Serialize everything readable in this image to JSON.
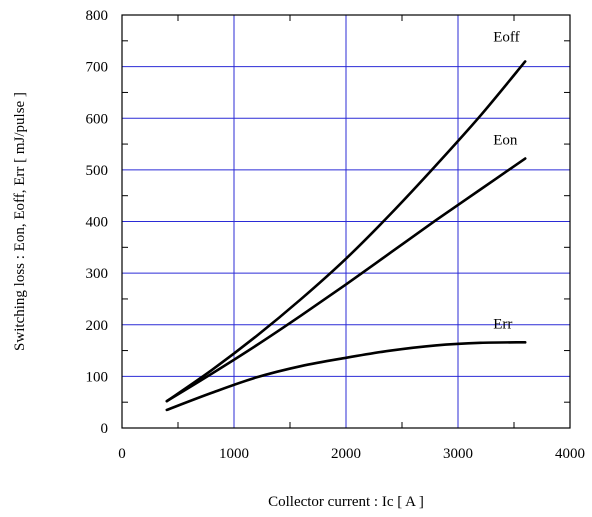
{
  "chart_data": {
    "type": "line",
    "xlabel": "Collector current : Ic [ A ]",
    "ylabel": "Switching loss : Eon, Eoff, Err [ mJ/pulse ]",
    "xlim": [
      0,
      4000
    ],
    "ylim": [
      0,
      800
    ],
    "x_ticks": [
      "0",
      "1000",
      "2000",
      "3000",
      "4000"
    ],
    "y_ticks": [
      "0",
      "100",
      "200",
      "300",
      "400",
      "500",
      "600",
      "700",
      "800"
    ],
    "grid": true,
    "series": [
      {
        "name": "Eoff",
        "x": [
          400,
          800,
          1200,
          1600,
          2000,
          2400,
          2800,
          3200,
          3600
        ],
        "y": [
          52,
          112,
          178,
          250,
          328,
          415,
          508,
          605,
          710
        ]
      },
      {
        "name": "Eon",
        "x": [
          400,
          800,
          1200,
          1600,
          2000,
          2400,
          2800,
          3200,
          3600
        ],
        "y": [
          52,
          105,
          160,
          218,
          278,
          340,
          402,
          462,
          522
        ]
      },
      {
        "name": "Err",
        "x": [
          400,
          800,
          1200,
          1600,
          2000,
          2400,
          2800,
          3200,
          3600
        ],
        "y": [
          35,
          68,
          98,
          120,
          136,
          150,
          160,
          165,
          166
        ]
      }
    ],
    "colors": {
      "grid": "#2b2bd6",
      "curves": "#000000"
    }
  }
}
